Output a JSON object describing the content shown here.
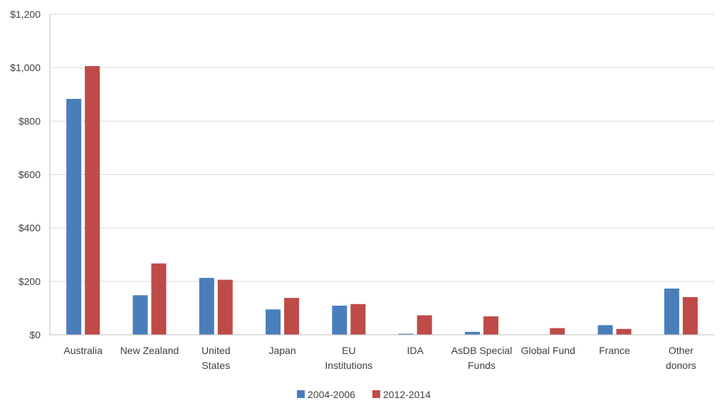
{
  "chart_data": {
    "type": "bar",
    "categories": [
      [
        "Australia"
      ],
      [
        "New Zealand"
      ],
      [
        "United",
        "States"
      ],
      [
        "Japan"
      ],
      [
        "EU",
        "Institutions"
      ],
      [
        "IDA"
      ],
      [
        "AsDB Special",
        "Funds"
      ],
      [
        "Global Fund"
      ],
      [
        "France"
      ],
      [
        "Other",
        "donors"
      ]
    ],
    "series": [
      {
        "name": "2004-2006",
        "color": "#4A7EBB",
        "values": [
          883,
          148,
          213,
          95,
          109,
          4,
          11,
          0,
          36,
          173
        ]
      },
      {
        "name": "2012-2014",
        "color": "#BE4B48",
        "values": [
          1006,
          267,
          206,
          138,
          115,
          73,
          69,
          25,
          22,
          141
        ]
      }
    ],
    "yticks": [
      "$0",
      "$200",
      "$400",
      "$600",
      "$800",
      "$1,000",
      "$1,200"
    ],
    "ylim": [
      0,
      1200
    ],
    "ystep": 200,
    "grid": true,
    "legend_position": "bottom"
  }
}
